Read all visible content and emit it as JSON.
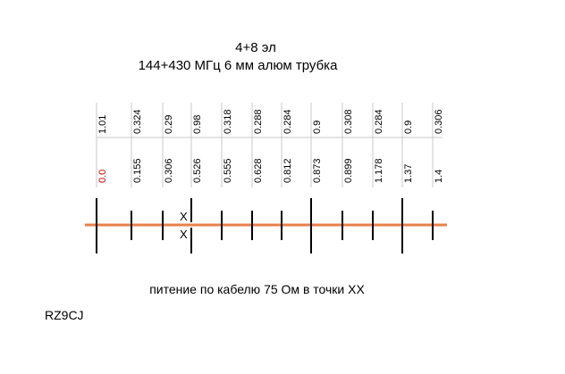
{
  "header": {
    "line1": "4+8 эл",
    "line2": "144+430 МГц  6 мм алюм трубка"
  },
  "elements": [
    {
      "length": "1.01",
      "position": "0.0",
      "position_color": "#c00000"
    },
    {
      "length": "0.324",
      "position": "0.155"
    },
    {
      "length": "0.29",
      "position": "0.306"
    },
    {
      "length": "0.98",
      "position": "0.526"
    },
    {
      "length": "0.318",
      "position": "0.555"
    },
    {
      "length": "0.288",
      "position": "0.628"
    },
    {
      "length": "0.284",
      "position": "0.812"
    },
    {
      "length": "0.9",
      "position": "0.873"
    },
    {
      "length": "0.308",
      "position": "0.899"
    },
    {
      "length": "0.284",
      "position": "1.178"
    },
    {
      "length": "0.9",
      "position": "1.37"
    },
    {
      "length": "0.306",
      "position": "1.4"
    }
  ],
  "feed_labels": [
    "X",
    "X"
  ],
  "caption": "питение по кабелю 75 Ом в точки ХХ",
  "callsign": "RZ9CJ",
  "colors": {
    "boom": "#e8804a",
    "element": "#000000",
    "table_lines": "#c8c8c8"
  }
}
